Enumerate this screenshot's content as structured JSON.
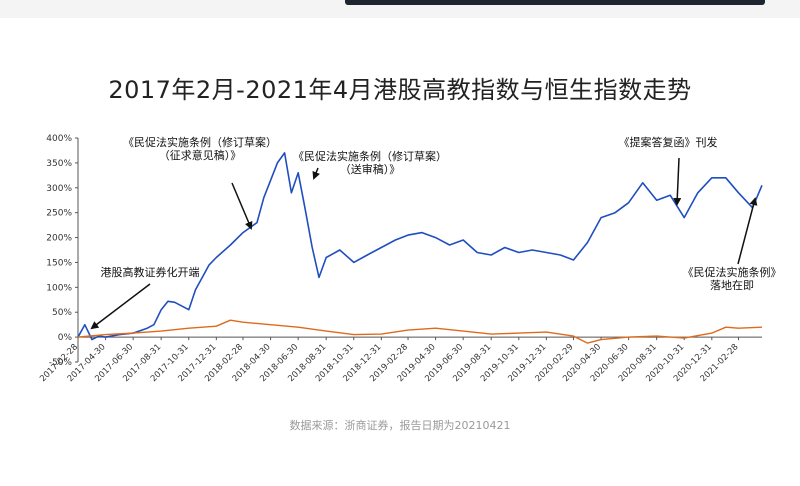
{
  "title": "2017年2月-2021年4月港股高教指数与恒生指数走势",
  "source": "数据来源：浙商证券，报告日期为20210421",
  "colors": {
    "edu_index": "#1f4fbf",
    "hsi": "#e06a1c",
    "axis": "#555555",
    "arrow": "#111111"
  },
  "chart_data": {
    "type": "line",
    "title": "2017年2月-2021年4月港股高教指数与恒生指数走势",
    "xlabel": "",
    "ylabel": "",
    "ylim": [
      -0.5,
      4.0
    ],
    "yticks": [
      "400%",
      "350%",
      "300%",
      "250%",
      "200%",
      "150%",
      "100%",
      "50%",
      "0%",
      "-50%"
    ],
    "xticks": [
      "2017-02-28",
      "2017-04-30",
      "2017-06-30",
      "2017-08-31",
      "2017-10-31",
      "2017-12-31",
      "2018-02-28",
      "2018-04-30",
      "2018-06-30",
      "2018-08-31",
      "2018-10-31",
      "2018-12-31",
      "2019-02-28",
      "2019-04-30",
      "2019-06-30",
      "2019-08-31",
      "2019-10-31",
      "2019-12-31",
      "2020-02-29",
      "2020-04-30",
      "2020-06-30",
      "2020-08-31",
      "2020-10-31",
      "2020-12-31",
      "2021-02-28"
    ],
    "grid": false,
    "series": [
      {
        "color": "#1f4fbf",
        "x": [
          "2017-02-28",
          "2017-03-15",
          "2017-03-31",
          "2017-04-15",
          "2017-04-30",
          "2017-05-31",
          "2017-06-30",
          "2017-07-31",
          "2017-08-15",
          "2017-08-31",
          "2017-09-15",
          "2017-09-30",
          "2017-10-31",
          "2017-11-15",
          "2017-11-30",
          "2017-12-15",
          "2017-12-31",
          "2018-01-31",
          "2018-02-28",
          "2018-03-31",
          "2018-04-15",
          "2018-04-30",
          "2018-05-15",
          "2018-05-31",
          "2018-06-15",
          "2018-06-30",
          "2018-07-15",
          "2018-07-31",
          "2018-08-15",
          "2018-08-31",
          "2018-09-30",
          "2018-10-31",
          "2018-11-30",
          "2018-12-31",
          "2019-01-31",
          "2019-02-28",
          "2019-03-31",
          "2019-04-30",
          "2019-05-31",
          "2019-06-30",
          "2019-07-31",
          "2019-08-31",
          "2019-09-30",
          "2019-10-31",
          "2019-11-30",
          "2019-12-31",
          "2020-01-31",
          "2020-02-29",
          "2020-03-31",
          "2020-04-30",
          "2020-05-31",
          "2020-06-30",
          "2020-07-31",
          "2020-08-31",
          "2020-09-30",
          "2020-10-31",
          "2020-11-30",
          "2020-12-31",
          "2021-01-31",
          "2021-02-28",
          "2021-03-31",
          "2021-04-21"
        ],
        "y": [
          0.0,
          0.25,
          -0.05,
          0.02,
          0.0,
          0.05,
          0.08,
          0.18,
          0.25,
          0.55,
          0.72,
          0.7,
          0.55,
          0.95,
          1.2,
          1.45,
          1.6,
          1.85,
          2.1,
          2.3,
          2.8,
          3.15,
          3.5,
          3.7,
          2.9,
          3.3,
          2.6,
          1.8,
          1.2,
          1.6,
          1.75,
          1.5,
          1.65,
          1.8,
          1.95,
          2.05,
          2.1,
          2.0,
          1.85,
          1.95,
          1.7,
          1.65,
          1.8,
          1.7,
          1.75,
          1.7,
          1.65,
          1.55,
          1.9,
          2.4,
          2.5,
          2.7,
          3.1,
          2.75,
          2.85,
          2.4,
          2.9,
          3.2,
          3.2,
          2.9,
          2.6,
          3.05
        ]
      },
      {
        "color": "#e06a1c",
        "x": [
          "2017-02-28",
          "2017-04-30",
          "2017-06-30",
          "2017-08-31",
          "2017-10-31",
          "2017-12-31",
          "2018-01-31",
          "2018-02-28",
          "2018-04-30",
          "2018-06-30",
          "2018-08-31",
          "2018-10-31",
          "2018-12-31",
          "2019-02-28",
          "2019-04-30",
          "2019-06-30",
          "2019-08-31",
          "2019-10-31",
          "2019-12-31",
          "2020-02-29",
          "2020-03-31",
          "2020-04-30",
          "2020-06-30",
          "2020-08-31",
          "2020-10-31",
          "2020-12-31",
          "2021-01-31",
          "2021-02-28",
          "2021-04-21"
        ],
        "y": [
          0.0,
          0.05,
          0.08,
          0.12,
          0.18,
          0.22,
          0.34,
          0.3,
          0.25,
          0.2,
          0.12,
          0.05,
          0.06,
          0.14,
          0.18,
          0.12,
          0.06,
          0.08,
          0.1,
          0.02,
          -0.12,
          -0.05,
          0.0,
          0.02,
          -0.02,
          0.08,
          0.2,
          0.18,
          0.2
        ]
      }
    ],
    "annotations": [
      {
        "lines": [
          "港股高教证券化开端"
        ],
        "date": "2017-03-20",
        "value": 0.1
      },
      {
        "lines": [
          "《民促法实施条例（修订草案）",
          "（征求意见稿）》"
        ],
        "date": "2018-02-28",
        "value": 2.1
      },
      {
        "lines": [
          "《民促法实施条例（修订草案）",
          "（送审稿）》"
        ],
        "date": "2018-06-30",
        "value": 3.2
      },
      {
        "lines": [
          "《提案答复函》刊发"
        ],
        "date": "2020-08-31",
        "value": 2.75
      },
      {
        "lines": [
          "《民促法实施条例》",
          "落地在即"
        ],
        "date": "2021-04-10",
        "value": 2.8
      }
    ]
  }
}
